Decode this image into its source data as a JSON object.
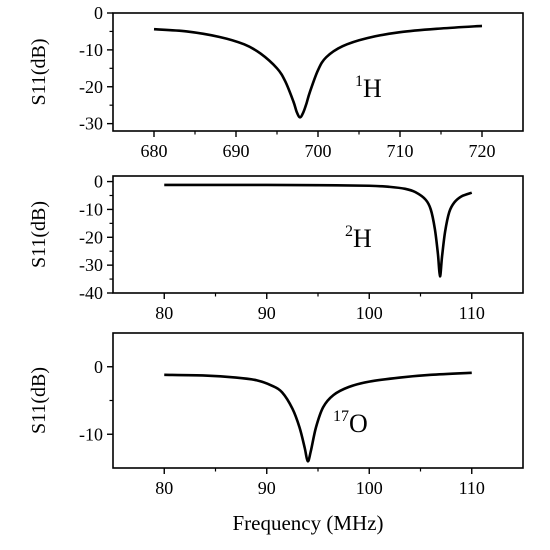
{
  "chart_data": [
    {
      "type": "line",
      "ylabel": "S11(dB)",
      "xlabel": "",
      "annotation": {
        "mass": "1",
        "element": "H"
      },
      "xlim": [
        675,
        725
      ],
      "ylim": [
        -32,
        0
      ],
      "xticks": [
        "680",
        "690",
        "700",
        "710",
        "720"
      ],
      "yticks": [
        "0",
        "-10",
        "-20",
        "-30"
      ],
      "series": [
        {
          "x": [
            680,
            684,
            688,
            691,
            693,
            695,
            696,
            697,
            697.4,
            697.8,
            698.2,
            698.6,
            699,
            700,
            701,
            703,
            706,
            710,
            715,
            720
          ],
          "y": [
            -4.4,
            -5.0,
            -6.5,
            -8.5,
            -11.0,
            -15.0,
            -18.5,
            -24.0,
            -26.8,
            -28.3,
            -27.0,
            -24.5,
            -21.5,
            -15.5,
            -12.0,
            -9.0,
            -6.8,
            -5.2,
            -4.2,
            -3.5
          ]
        }
      ]
    },
    {
      "type": "line",
      "ylabel": "S11(dB)",
      "xlabel": "",
      "annotation": {
        "mass": "2",
        "element": "H"
      },
      "xlim": [
        75,
        115
      ],
      "ylim": [
        -40,
        2
      ],
      "xticks": [
        "80",
        "90",
        "100",
        "110"
      ],
      "yticks": [
        "0",
        "-10",
        "-20",
        "-30",
        "-40"
      ],
      "series": [
        {
          "x": [
            80,
            85,
            90,
            95,
            100,
            102,
            103.5,
            104.5,
            105.5,
            106,
            106.4,
            106.7,
            106.9,
            107.1,
            107.4,
            107.8,
            108.3,
            109,
            110
          ],
          "y": [
            -1.2,
            -1.2,
            -1.2,
            -1.3,
            -1.5,
            -1.9,
            -2.6,
            -3.8,
            -6.5,
            -10.0,
            -17.0,
            -26.0,
            -34.0,
            -27.0,
            -18.0,
            -11.0,
            -7.5,
            -5.3,
            -4.0
          ]
        }
      ]
    },
    {
      "type": "line",
      "ylabel": "S11(dB)",
      "xlabel": "Frequency (MHz)",
      "annotation": {
        "mass": "17",
        "element": "O"
      },
      "xlim": [
        75,
        115
      ],
      "ylim": [
        -15,
        5
      ],
      "xticks": [
        "80",
        "90",
        "100",
        "110"
      ],
      "yticks": [
        "0",
        "-10"
      ],
      "series": [
        {
          "x": [
            80,
            84,
            87,
            89,
            90.5,
            91.5,
            92.5,
            93.2,
            93.7,
            94,
            94.3,
            94.8,
            95.5,
            96.5,
            98,
            100,
            103,
            106,
            110
          ],
          "y": [
            -1.2,
            -1.3,
            -1.6,
            -2.0,
            -2.8,
            -3.8,
            -6.2,
            -9.0,
            -12.0,
            -14.0,
            -12.5,
            -9.0,
            -6.0,
            -4.2,
            -3.0,
            -2.2,
            -1.6,
            -1.2,
            -0.9
          ]
        }
      ]
    }
  ]
}
